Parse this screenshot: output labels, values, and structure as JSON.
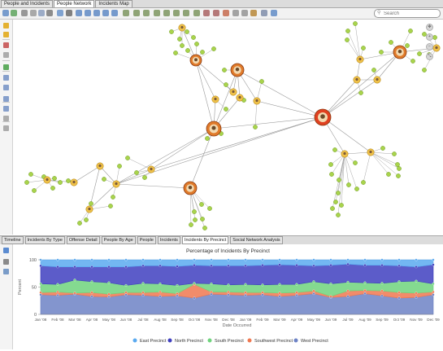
{
  "tabs": [
    "People and Incidents",
    "People Network",
    "Incidents Map"
  ],
  "active_tab": 1,
  "search": {
    "placeholder": "Search"
  },
  "bottom_tabs": [
    "Timeline",
    "Incidents By Type",
    "Offense Detail",
    "People By Age",
    "People",
    "Incidents",
    "Incidents By Precinct",
    "Social Network Analysis"
  ],
  "active_bottom_tab": 6,
  "chart_data": {
    "type": "area",
    "stacked": true,
    "percent": true,
    "title": "Percentage of Incidents By Precinct",
    "xlabel": "Date Occurred",
    "ylabel": "Percent",
    "ylim": [
      0,
      100
    ],
    "yticks": [
      0,
      50,
      100
    ],
    "categories": [
      "Jan '08",
      "Feb '08",
      "Mar '08",
      "Apr '08",
      "May '08",
      "Jun '08",
      "Jul '08",
      "Aug '08",
      "Sep '08",
      "Oct '08",
      "Nov '08",
      "Dec '08",
      "Jan '09",
      "Feb '09",
      "Mar '09",
      "Apr '09",
      "May '09",
      "Jun '09",
      "Jul '09",
      "Aug '09",
      "Sep '09",
      "Oct '09",
      "Nov '09",
      "Dec '09"
    ],
    "xlabels": [
      "Jan '08",
      "Feb '08",
      "Mar '08",
      "Apr '08",
      "May '08",
      "Jun '08",
      "Jul '08",
      "Aug '08",
      "Sep '08",
      "Oct '08",
      "Nov '08",
      "Dec '08",
      "Jan '09",
      "Feb '09",
      "Mar '09",
      "Apr '09",
      "May '09",
      "Jun '09",
      "Jul '09",
      "Aug '09",
      "Sep '09",
      "Oct '09",
      "Nov '09",
      "Dec '09"
    ],
    "series": [
      {
        "name": "West Precinct",
        "color": "#6d83c6",
        "values": [
          36,
          35,
          37,
          33,
          32,
          36,
          35,
          33,
          34,
          30,
          37,
          36,
          35,
          36,
          33,
          35,
          38,
          31,
          33,
          38,
          34,
          30,
          31,
          36
        ]
      },
      {
        "name": "Southwest Precinct",
        "color": "#f07850",
        "values": [
          4,
          6,
          2,
          7,
          5,
          4,
          5,
          8,
          4,
          25,
          4,
          5,
          5,
          4,
          6,
          5,
          5,
          2,
          10,
          6,
          9,
          10,
          8,
          5
        ]
      },
      {
        "name": "South Precinct",
        "color": "#6fd47d",
        "values": [
          16,
          14,
          24,
          20,
          21,
          13,
          17,
          15,
          15,
          2,
          15,
          13,
          15,
          14,
          16,
          15,
          17,
          23,
          16,
          14,
          14,
          20,
          22,
          15
        ]
      },
      {
        "name": "North Precinct",
        "color": "#3f3fbf",
        "values": [
          33,
          32,
          24,
          27,
          29,
          34,
          32,
          33,
          35,
          33,
          33,
          35,
          34,
          36,
          36,
          35,
          29,
          34,
          33,
          32,
          33,
          29,
          26,
          35
        ]
      },
      {
        "name": "East Precinct",
        "color": "#5aaaf0",
        "values": [
          11,
          13,
          13,
          13,
          13,
          13,
          11,
          11,
          12,
          10,
          11,
          11,
          11,
          10,
          9,
          10,
          11,
          10,
          8,
          10,
          10,
          11,
          13,
          9
        ]
      }
    ],
    "legend_order": [
      "East Precinct",
      "North Precinct",
      "South Precinct",
      "Southwest Precinct",
      "West Precinct"
    ],
    "legend_position": "bottom"
  }
}
